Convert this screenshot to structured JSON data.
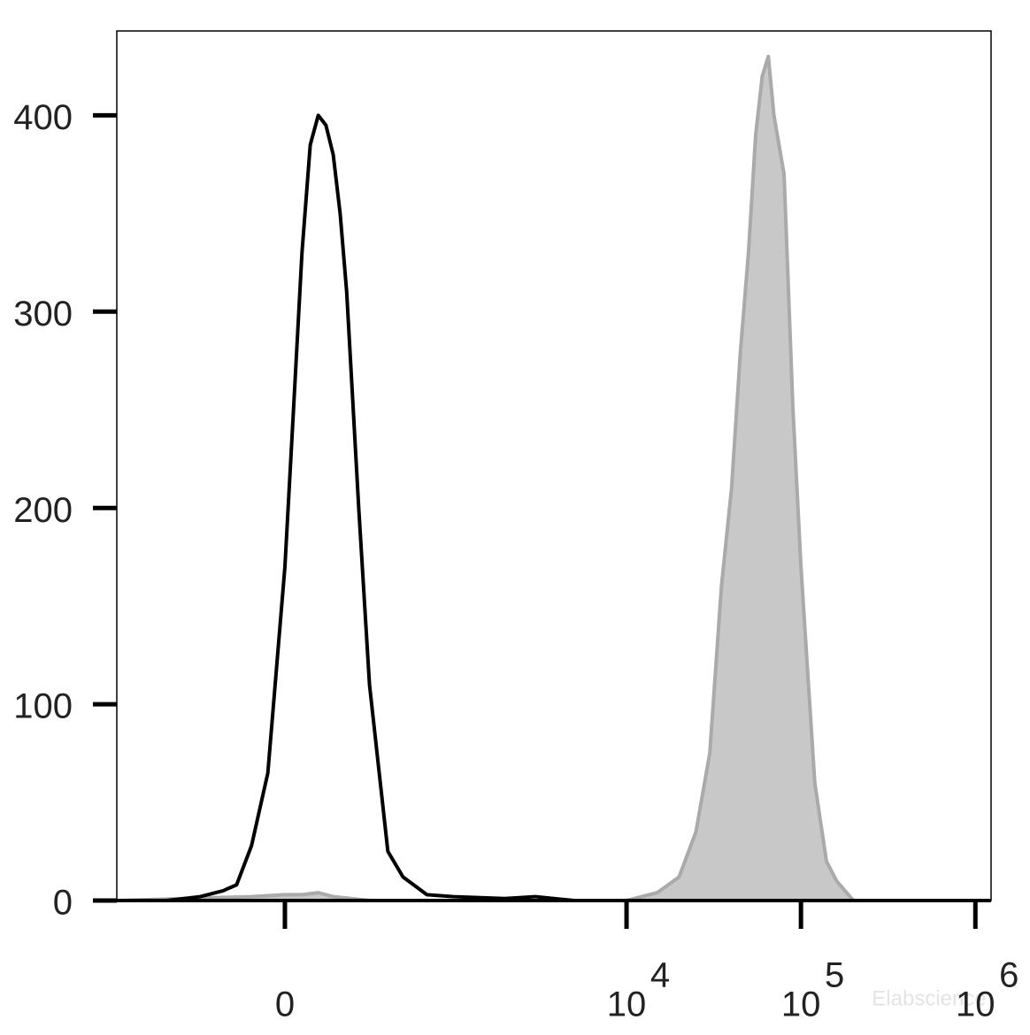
{
  "chart_data": {
    "type": "histogram-overlay",
    "xscale": "asinh",
    "xscale_cofactor": 220,
    "xlim": [
      -1000,
      1230000
    ],
    "ylim": [
      0,
      443
    ],
    "xticks": [
      0,
      {
        "value": 10000,
        "label": "10",
        "exponent": "4"
      },
      {
        "value": 100000,
        "label": "10",
        "exponent": "5"
      },
      {
        "value": 1000000,
        "label": "10",
        "exponent": "6"
      }
    ],
    "yticks": [
      0,
      100,
      200,
      300,
      400
    ],
    "watermark": "Elabscience",
    "series": [
      {
        "color": "#c8c8c8",
        "edge_color": "#aaaaaa",
        "fill": true,
        "x": [
          -1000,
          -100,
          0,
          50,
          100,
          150,
          300,
          10000,
          15000,
          20000,
          25000,
          30000,
          35000,
          40000,
          45000,
          50000,
          55000,
          60000,
          65000,
          70000,
          80000,
          90000,
          100000,
          120000,
          140000,
          160000,
          200000,
          1000000
        ],
        "values": [
          0,
          2,
          3,
          3,
          4,
          2,
          0,
          0,
          4,
          12,
          35,
          75,
          160,
          210,
          280,
          330,
          390,
          420,
          430,
          400,
          370,
          250,
          170,
          60,
          20,
          10,
          0,
          0
        ]
      },
      {
        "color": "#000000",
        "fill": false,
        "x": [
          -1000,
          -500,
          -300,
          -200,
          -150,
          -100,
          -50,
          0,
          25,
          50,
          75,
          100,
          125,
          150,
          175,
          200,
          250,
          300,
          400,
          500,
          700,
          1000,
          2000,
          3000,
          5000,
          10000,
          1000000
        ],
        "values": [
          0,
          0,
          2,
          5,
          8,
          28,
          65,
          170,
          250,
          330,
          385,
          400,
          395,
          380,
          350,
          310,
          200,
          110,
          25,
          12,
          3,
          2,
          1,
          2,
          0,
          0,
          0
        ]
      }
    ]
  }
}
